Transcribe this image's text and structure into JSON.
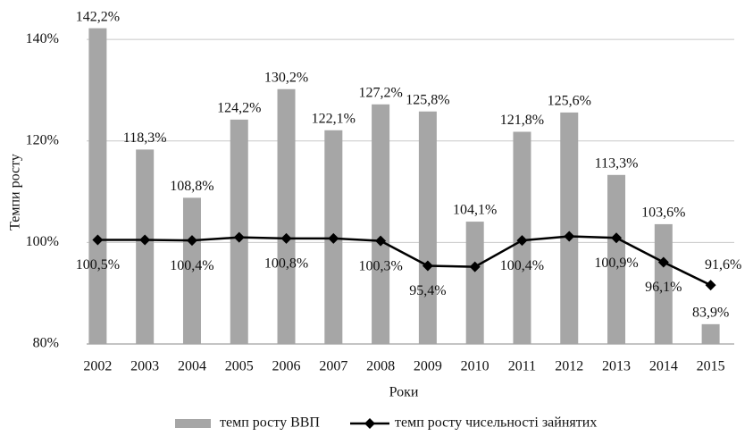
{
  "chart_data": {
    "type": "bar_line",
    "x_label": "Роки",
    "y_label": "Темпи росту",
    "categories": [
      "2002",
      "2003",
      "2004",
      "2005",
      "2006",
      "2007",
      "2008",
      "2009",
      "2010",
      "2011",
      "2012",
      "2013",
      "2014",
      "2015"
    ],
    "series": [
      {
        "name": "темп росту ВВП",
        "type": "bar",
        "color": "#a6a6a6",
        "values": [
          142.2,
          118.3,
          108.8,
          124.2,
          130.2,
          122.1,
          127.2,
          125.8,
          104.1,
          121.8,
          125.6,
          113.3,
          103.6,
          83.9
        ],
        "value_labels": [
          "142,2%",
          "118,3%",
          "108,8%",
          "124,2%",
          "130,2%",
          "122,1%",
          "127,2%",
          "125,8%",
          "104,1%",
          "121,8%",
          "125,6%",
          "113,3%",
          "103,6%",
          "83,9%"
        ]
      },
      {
        "name": "темп росту чисельності зайнятих",
        "type": "line",
        "color": "#000000",
        "values": [
          100.5,
          100.5,
          100.4,
          101.0,
          100.8,
          100.8,
          100.3,
          95.4,
          95.2,
          100.4,
          101.2,
          100.9,
          96.1,
          91.6
        ],
        "value_labels": [
          "100,5%",
          null,
          "100,4%",
          null,
          "100,8%",
          null,
          "100,3%",
          "95,4%",
          null,
          "100,4%",
          null,
          "100,9%",
          "96,1%",
          "91,6%"
        ]
      }
    ],
    "ylim": [
      80,
      146
    ],
    "yticks": [
      {
        "value": 80,
        "label": "80%"
      },
      {
        "value": 100,
        "label": "100%"
      },
      {
        "value": 120,
        "label": "120%"
      },
      {
        "value": 140,
        "label": "140%"
      }
    ],
    "grid": true,
    "legend": "bottom"
  }
}
